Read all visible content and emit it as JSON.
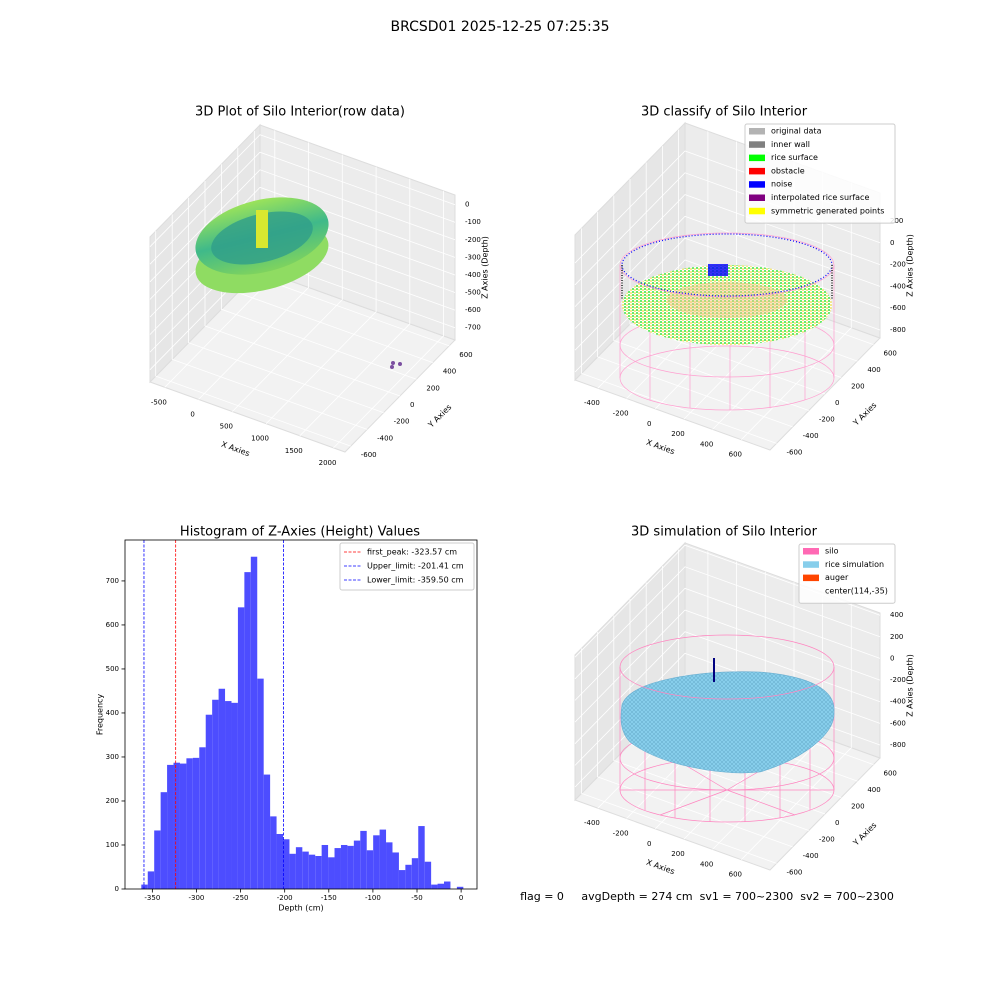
{
  "title": "BRCSD01 2025-12-25 07:25:35",
  "footer": "flag = 0     avgDepth = 274 cm  sv1 = 700~2300  sv2 = 700~2300",
  "chart_data": [
    {
      "type": "scatter3d",
      "title": "3D Plot of Silo Interior(row data)",
      "xlabel": "X Axies",
      "ylabel": "Y Axies",
      "zlabel": "Z Axies (Depth)",
      "xlim": [
        -720,
        2170
      ],
      "ylim": [
        -670,
        670
      ],
      "zlim": [
        -770,
        55
      ],
      "xticks": [
        -500,
        0,
        500,
        1000,
        1500,
        2000
      ],
      "yticks": [
        -600,
        -400,
        -200,
        0,
        200,
        400,
        600
      ],
      "zticks": [
        0,
        -100,
        -200,
        -300,
        -400,
        -500,
        -600,
        -700
      ]
    },
    {
      "type": "scatter3d",
      "title": "3D classify of Silo Interior",
      "xlabel": "X Axies",
      "ylabel": "Y Axies",
      "zlabel": "Z Axies (Depth)",
      "xlim": [
        -560,
        800
      ],
      "ylim": [
        -680,
        680
      ],
      "zlim": [
        -873,
        457
      ],
      "xticks": [
        -400,
        -200,
        0,
        200,
        400,
        600
      ],
      "yticks": [
        -600,
        -400,
        -200,
        0,
        200,
        400,
        600
      ],
      "zticks": [
        200,
        0,
        -200,
        -400,
        -600,
        -800
      ],
      "legend": [
        {
          "name": "original data",
          "color": "#b3b3b3"
        },
        {
          "name": "inner wall",
          "color": "#808080"
        },
        {
          "name": "rice surface",
          "color": "#00ff00"
        },
        {
          "name": "obstacle",
          "color": "#ff0000"
        },
        {
          "name": "noise",
          "color": "#0000ff"
        },
        {
          "name": "interpolated rice surface",
          "color": "#800080"
        },
        {
          "name": "symmetric generated points",
          "color": "#ffff00"
        }
      ]
    },
    {
      "type": "histogram",
      "title": "Histogram of Z-Axies (Height) Values",
      "xlabel": "Depth (cm)",
      "ylabel": "Frequency",
      "color": "#4d4dff",
      "xlim": [
        -381,
        18
      ],
      "ylim": [
        0,
        793
      ],
      "xticks": [
        -350,
        -300,
        -250,
        -200,
        -150,
        -100,
        -50,
        0
      ],
      "yticks": [
        0,
        100,
        200,
        300,
        400,
        500,
        600,
        700
      ],
      "bins": [
        -362.5,
        -355.2,
        -347.9,
        -340.6,
        -333.3,
        -326.0,
        -318.7,
        -311.4,
        -304.1,
        -296.8,
        -289.5,
        -282.2,
        -274.9,
        -267.6,
        -260.3,
        -253.0,
        -245.7,
        -238.4,
        -231.1,
        -223.8,
        -216.5,
        -209.2,
        -201.9,
        -194.6,
        -187.3,
        -180.0,
        -172.7,
        -165.4,
        -158.1,
        -150.8,
        -143.5,
        -136.2,
        -128.9,
        -121.6,
        -114.3,
        -107.0,
        -99.7,
        -92.4,
        -85.1,
        -77.8,
        -70.5,
        -63.2,
        -55.9,
        -48.6,
        -41.3,
        -34.0,
        -26.7,
        -19.4,
        -12.1,
        -4.8,
        2.5
      ],
      "values": [
        10,
        40,
        133,
        220,
        282,
        287,
        285,
        297,
        298,
        322,
        396,
        430,
        455,
        427,
        423,
        640,
        720,
        755,
        478,
        260,
        165,
        125,
        113,
        80,
        95,
        85,
        78,
        75,
        100,
        72,
        93,
        100,
        98,
        110,
        132,
        88,
        122,
        135,
        106,
        83,
        43,
        55,
        70,
        143,
        62,
        10,
        12,
        17,
        0,
        5
      ],
      "vlines": [
        {
          "label": "first_peak: -323.57 cm",
          "value": -323.57,
          "color": "#ff0000"
        },
        {
          "label": "Upper_limit: -201.41 cm",
          "value": -201.41,
          "color": "#0000ff"
        },
        {
          "label": "Lower_limit: -359.50 cm",
          "value": -359.5,
          "color": "#0000ff"
        }
      ],
      "legend_loc": "upper right"
    },
    {
      "type": "surface3d",
      "title": "3D simulation of Silo Interior",
      "xlabel": "X Axies",
      "ylabel": "Y Axies",
      "zlabel": "Z Axies (Depth)",
      "xlim": [
        -560,
        800
      ],
      "ylim": [
        -680,
        680
      ],
      "zlim": [
        -920,
        420
      ],
      "xticks": [
        -400,
        -200,
        0,
        200,
        400,
        600
      ],
      "yticks": [
        -600,
        -400,
        -200,
        0,
        200,
        400,
        600
      ],
      "zticks": [
        400,
        200,
        0,
        -200,
        -400,
        -600,
        -800
      ],
      "legend": [
        {
          "name": "silo",
          "color": "#ff69b4"
        },
        {
          "name": "rice simulation",
          "color": "#87ceeb"
        },
        {
          "name": "auger",
          "color": "#ff4500"
        },
        {
          "name": "center(114,-35)"
        }
      ]
    }
  ]
}
